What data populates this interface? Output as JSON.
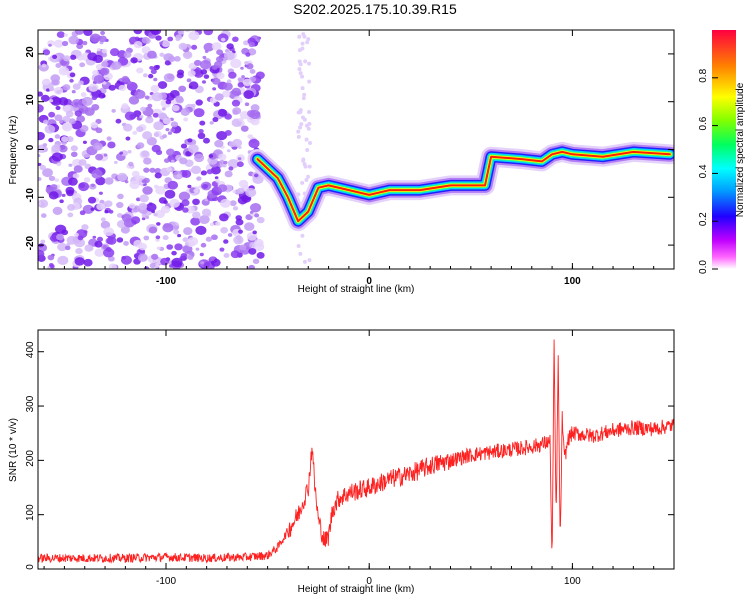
{
  "title": "S202.2025.175.10.39.R15",
  "chart_data": [
    {
      "type": "heatmap",
      "xlabel": "Height of straight line (km)",
      "ylabel": "Frequency (Hz)",
      "xlim": [
        -163,
        150
      ],
      "ylim": [
        -25,
        25
      ],
      "xticks": [
        -100,
        0,
        100
      ],
      "yticks": [
        -20,
        -10,
        0,
        10,
        20
      ],
      "colorbar": {
        "label": "Normalized spectral amplitude",
        "range": [
          0,
          1
        ],
        "ticks": [
          "0.0",
          "0.2",
          "0.4",
          "0.6",
          "0.8"
        ],
        "colormap": [
          "#ffffff",
          "#d8b4f8",
          "#9b4dff",
          "#5a00e0",
          "#0000ff",
          "#00c8ff",
          "#00ff00",
          "#ffff00",
          "#ff8000",
          "#ff0000"
        ]
      },
      "ridge": [
        {
          "x": -55,
          "y": -2
        },
        {
          "x": -50,
          "y": -4
        },
        {
          "x": -45,
          "y": -6
        },
        {
          "x": -40,
          "y": -10
        },
        {
          "x": -35,
          "y": -15
        },
        {
          "x": -30,
          "y": -13
        },
        {
          "x": -25,
          "y": -8
        },
        {
          "x": -20,
          "y": -7.5
        },
        {
          "x": -10,
          "y": -8.5
        },
        {
          "x": 0,
          "y": -9.5
        },
        {
          "x": 10,
          "y": -8.5
        },
        {
          "x": 25,
          "y": -8.5
        },
        {
          "x": 40,
          "y": -7.5
        },
        {
          "x": 57,
          "y": -7.5
        },
        {
          "x": 60,
          "y": -1.5
        },
        {
          "x": 75,
          "y": -2
        },
        {
          "x": 85,
          "y": -2.5
        },
        {
          "x": 90,
          "y": -1
        },
        {
          "x": 95,
          "y": -0.5
        },
        {
          "x": 100,
          "y": -1
        },
        {
          "x": 115,
          "y": -1.5
        },
        {
          "x": 130,
          "y": -0.5
        },
        {
          "x": 148,
          "y": -1
        }
      ]
    },
    {
      "type": "line",
      "xlabel": "Height of straight line (km)",
      "ylabel": "SNR (10 * v/v)",
      "xlim": [
        -163,
        150
      ],
      "ylim": [
        0,
        440
      ],
      "xticks": [
        -100,
        0,
        100
      ],
      "yticks": [
        0,
        100,
        200,
        300,
        400
      ],
      "color": "#ff2020",
      "x": [
        -163,
        -140,
        -120,
        -100,
        -80,
        -60,
        -50,
        -45,
        -40,
        -35,
        -30,
        -28,
        -27,
        -25,
        -22,
        -20,
        -18,
        -15,
        -10,
        0,
        10,
        20,
        30,
        40,
        50,
        60,
        70,
        80,
        85,
        89,
        90,
        91,
        92,
        93,
        94,
        95,
        96,
        98,
        100,
        110,
        120,
        130,
        140,
        150
      ],
      "y": [
        20,
        20,
        20,
        22,
        20,
        22,
        25,
        40,
        70,
        100,
        150,
        230,
        160,
        90,
        50,
        60,
        110,
        130,
        140,
        150,
        165,
        175,
        190,
        200,
        210,
        215,
        220,
        225,
        230,
        235,
        10,
        420,
        80,
        390,
        40,
        280,
        200,
        240,
        250,
        245,
        255,
        260,
        258,
        265
      ]
    }
  ]
}
